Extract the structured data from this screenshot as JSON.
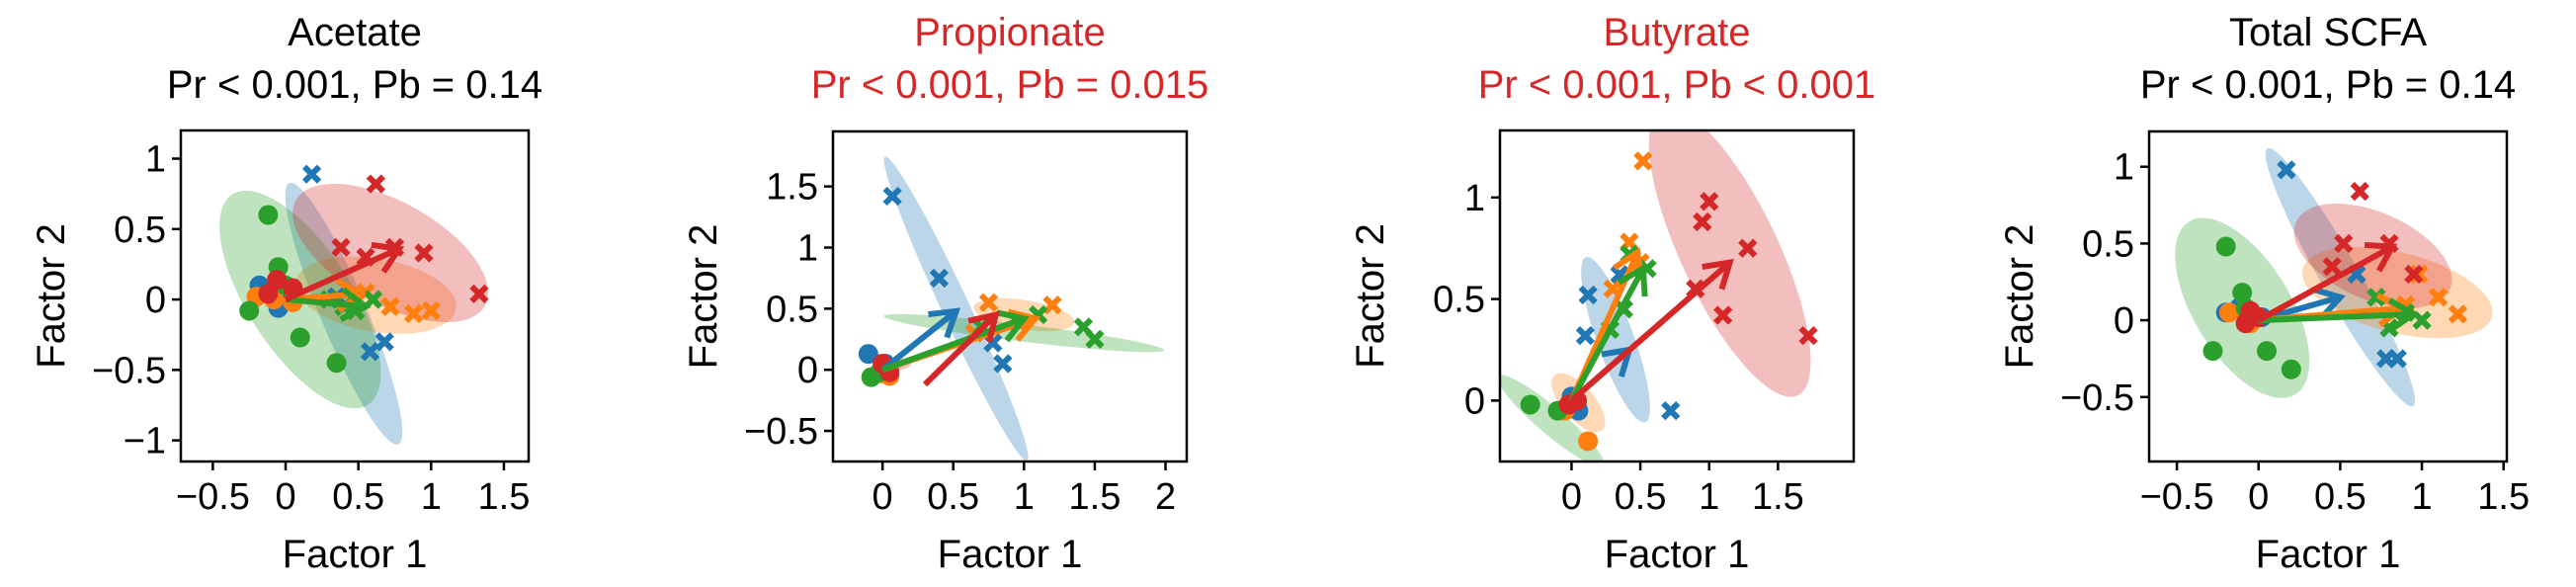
{
  "colors": {
    "blue": "#1f77b4",
    "orange": "#ff7f0e",
    "green": "#2ca02c",
    "red": "#d62728",
    "title_red": "#d62728",
    "title_black": "#000000"
  },
  "chart_data": [
    {
      "type": "scatter",
      "title": "Acetate",
      "subtitle": "Pr < 0.001, Pb = 0.14",
      "title_color": "#000000",
      "xlabel": "Factor 1",
      "ylabel": "Factor 2",
      "xlim": [
        -0.72,
        1.67
      ],
      "ylim": [
        -1.15,
        1.2
      ],
      "xticks": [
        -0.5,
        0,
        0.5,
        1,
        1.5
      ],
      "xticklabels": [
        "−0.5",
        "0",
        "0.5",
        "1",
        "1.5"
      ],
      "yticks": [
        -1,
        -0.5,
        0,
        0.5,
        1
      ],
      "yticklabels": [
        "−1",
        "−0.5",
        "0",
        "0.5",
        "1"
      ],
      "groups": [
        {
          "color": "#1f77b4",
          "ellipse": {
            "cx": 0.4,
            "cy": -0.1,
            "rx": 1.0,
            "ry": 0.16,
            "angle": -68
          },
          "arrow": [
            0.0,
            0.0,
            0.52,
            0.04
          ],
          "circles": [
            [
              -0.18,
              0.1
            ],
            [
              -0.1,
              0.06
            ],
            [
              0.02,
              0.02
            ],
            [
              -0.05,
              -0.06
            ]
          ],
          "crosses": [
            [
              0.18,
              0.89
            ],
            [
              0.58,
              -0.37
            ],
            [
              0.68,
              -0.3
            ],
            [
              0.35,
              0.02
            ]
          ]
        },
        {
          "color": "#ff7f0e",
          "ellipse": {
            "cx": 0.62,
            "cy": 0.03,
            "rx": 0.56,
            "ry": 0.26,
            "angle": -10
          },
          "arrow": [
            0.0,
            0.0,
            0.52,
            0.04
          ],
          "circles": [
            [
              -0.2,
              0.02
            ],
            [
              -0.08,
              0.0
            ],
            [
              0.05,
              -0.02
            ]
          ],
          "crosses": [
            [
              0.72,
              -0.05
            ],
            [
              0.88,
              -0.1
            ],
            [
              1.0,
              -0.08
            ],
            [
              0.55,
              0.05
            ]
          ]
        },
        {
          "color": "#2ca02c",
          "ellipse": {
            "cx": 0.1,
            "cy": 0.0,
            "rx": 0.88,
            "ry": 0.36,
            "angle": -58
          },
          "arrow": [
            0.0,
            0.0,
            0.55,
            -0.05
          ],
          "circles": [
            [
              -0.12,
              0.6
            ],
            [
              -0.05,
              0.23
            ],
            [
              -0.25,
              -0.08
            ],
            [
              0.1,
              -0.27
            ],
            [
              0.35,
              -0.45
            ],
            [
              0.0,
              0.1
            ]
          ],
          "crosses": [
            [
              0.4,
              -0.05
            ],
            [
              0.48,
              -0.08
            ],
            [
              0.6,
              0.0
            ],
            [
              0.3,
              0.0
            ]
          ]
        },
        {
          "color": "#d62728",
          "ellipse": {
            "cx": 0.72,
            "cy": 0.33,
            "rx": 0.75,
            "ry": 0.36,
            "angle": -30
          },
          "arrow": [
            0.0,
            0.0,
            0.78,
            0.36
          ],
          "circles": [
            [
              -0.06,
              0.14
            ],
            [
              0.05,
              0.08
            ],
            [
              -0.12,
              0.04
            ]
          ],
          "crosses": [
            [
              0.62,
              0.82
            ],
            [
              0.38,
              0.37
            ],
            [
              0.75,
              0.37
            ],
            [
              0.95,
              0.33
            ],
            [
              1.33,
              0.04
            ],
            [
              0.55,
              0.3
            ]
          ]
        }
      ]
    },
    {
      "type": "scatter",
      "title": "Propionate",
      "subtitle": "Pr < 0.001, Pb = 0.015",
      "title_color": "#d62728",
      "xlabel": "Factor 1",
      "ylabel": "Factor 2",
      "xlim": [
        -0.35,
        2.15
      ],
      "ylim": [
        -0.75,
        1.95
      ],
      "xticks": [
        0,
        0.5,
        1,
        1.5,
        2
      ],
      "xticklabels": [
        "0",
        "0.5",
        "1",
        "1.5",
        "2"
      ],
      "yticks": [
        -0.5,
        0,
        0.5,
        1,
        1.5
      ],
      "yticklabels": [
        "−0.5",
        "0",
        "0.5",
        "1",
        "1.5"
      ],
      "groups": [
        {
          "color": "#1f77b4",
          "ellipse": {
            "cx": 0.52,
            "cy": 0.5,
            "rx": 1.34,
            "ry": 0.1,
            "angle": -68
          },
          "arrow": [
            0.0,
            0.0,
            0.52,
            0.48
          ],
          "circles": [
            [
              -0.1,
              0.13
            ],
            [
              0.02,
              0.05
            ]
          ],
          "crosses": [
            [
              0.07,
              1.42
            ],
            [
              0.4,
              0.75
            ],
            [
              0.78,
              0.22
            ],
            [
              0.85,
              0.05
            ]
          ]
        },
        {
          "color": "#ff7f0e",
          "ellipse": {
            "cx": 1.0,
            "cy": 0.45,
            "rx": 0.36,
            "ry": 0.12,
            "angle": -10
          },
          "arrow": [
            0.0,
            0.0,
            1.08,
            0.42
          ],
          "circles": [
            [
              0.0,
              -0.03
            ],
            [
              0.05,
              -0.05
            ]
          ],
          "crosses": [
            [
              0.75,
              0.55
            ],
            [
              1.2,
              0.53
            ],
            [
              0.95,
              0.4
            ],
            [
              0.65,
              0.3
            ]
          ]
        },
        {
          "color": "#2ca02c",
          "ellipse": {
            "cx": 1.0,
            "cy": 0.3,
            "rx": 1.0,
            "ry": 0.07,
            "angle": -8
          },
          "arrow": [
            0.0,
            0.0,
            1.0,
            0.42
          ],
          "circles": [
            [
              -0.08,
              -0.06
            ],
            [
              -0.02,
              -0.02
            ]
          ],
          "crosses": [
            [
              1.42,
              0.35
            ],
            [
              1.5,
              0.25
            ],
            [
              1.1,
              0.45
            ],
            [
              0.7,
              0.35
            ]
          ]
        },
        {
          "color": "#d62728",
          "ellipse": {
            "cx": 0.1,
            "cy": 0.05,
            "rx": 0.1,
            "ry": 0.05,
            "angle": 0
          },
          "arrow": [
            0.3,
            -0.12,
            0.8,
            0.45
          ],
          "circles": [
            [
              0.0,
              0.05
            ],
            [
              0.05,
              -0.02
            ]
          ],
          "crosses": []
        }
      ]
    },
    {
      "type": "scatter",
      "title": "Butyrate",
      "subtitle": "Pr < 0.001, Pb < 0.001",
      "title_color": "#d62728",
      "xlabel": "Factor 1",
      "ylabel": "Factor 2",
      "xlim": [
        -0.52,
        2.05
      ],
      "ylim": [
        -0.3,
        1.33
      ],
      "xticks": [
        0,
        0.5,
        1,
        1.5
      ],
      "xticklabels": [
        "0",
        "0.5",
        "1",
        "1.5"
      ],
      "yticks": [
        0,
        0.5,
        1
      ],
      "yticklabels": [
        "0",
        "0.5",
        "1"
      ],
      "groups": [
        {
          "color": "#1f77b4",
          "ellipse": {
            "cx": 0.32,
            "cy": 0.3,
            "rx": 0.46,
            "ry": 0.12,
            "angle": -62
          },
          "arrow": [
            0.0,
            0.0,
            0.42,
            0.25
          ],
          "circles": [
            [
              0.05,
              -0.05
            ],
            [
              0.0,
              0.02
            ]
          ],
          "crosses": [
            [
              0.12,
              0.52
            ],
            [
              0.1,
              0.32
            ],
            [
              0.35,
              0.62
            ],
            [
              0.72,
              -0.05
            ]
          ]
        },
        {
          "color": "#ff7f0e",
          "ellipse": {
            "cx": 0.05,
            "cy": -0.01,
            "rx": 0.22,
            "ry": 0.09,
            "angle": -38
          },
          "arrow": [
            0.0,
            0.0,
            0.48,
            0.73
          ],
          "circles": [
            [
              0.12,
              -0.2
            ],
            [
              -0.05,
              -0.05
            ]
          ],
          "crosses": [
            [
              0.52,
              1.18
            ],
            [
              0.42,
              0.78
            ],
            [
              0.5,
              0.68
            ],
            [
              0.3,
              0.55
            ]
          ]
        },
        {
          "color": "#2ca02c",
          "ellipse": {
            "cx": -0.15,
            "cy": -0.1,
            "rx": 0.44,
            "ry": 0.07,
            "angle": -30
          },
          "arrow": [
            0.0,
            0.0,
            0.52,
            0.65
          ],
          "circles": [
            [
              -0.3,
              -0.02
            ],
            [
              -0.1,
              -0.05
            ]
          ],
          "crosses": [
            [
              0.42,
              0.72
            ],
            [
              0.55,
              0.65
            ],
            [
              0.38,
              0.45
            ],
            [
              0.28,
              0.35
            ]
          ]
        },
        {
          "color": "#d62728",
          "ellipse": {
            "cx": 1.15,
            "cy": 0.73,
            "rx": 0.86,
            "ry": 0.3,
            "angle": -55
          },
          "arrow": [
            0.0,
            0.0,
            1.15,
            0.68
          ],
          "circles": [
            [
              -0.02,
              -0.02
            ],
            [
              0.04,
              0.0
            ]
          ],
          "crosses": [
            [
              1.28,
              0.75
            ],
            [
              1.72,
              0.32
            ],
            [
              1.1,
              0.42
            ],
            [
              0.95,
              0.88
            ],
            [
              1.0,
              0.98
            ],
            [
              0.9,
              0.55
            ]
          ]
        }
      ]
    },
    {
      "type": "scatter",
      "title": "Total SCFA",
      "subtitle": "Pr < 0.001, Pb = 0.14",
      "title_color": "#000000",
      "xlabel": "Factor 1",
      "ylabel": "Factor 2",
      "xlim": [
        -0.67,
        1.52
      ],
      "ylim": [
        -0.92,
        1.23
      ],
      "xticks": [
        -0.5,
        0,
        0.5,
        1,
        1.5
      ],
      "xticklabels": [
        "−0.5",
        "0",
        "0.5",
        "1",
        "1.5"
      ],
      "yticks": [
        -0.5,
        0,
        0.5,
        1
      ],
      "yticklabels": [
        "−0.5",
        "0",
        "0.5",
        "1"
      ],
      "groups": [
        {
          "color": "#1f77b4",
          "ellipse": {
            "cx": 0.5,
            "cy": 0.28,
            "rx": 0.95,
            "ry": 0.12,
            "angle": -62
          },
          "arrow": [
            0.0,
            0.0,
            0.5,
            0.15
          ],
          "circles": [
            [
              -0.12,
              0.08
            ],
            [
              0.02,
              0.02
            ],
            [
              -0.2,
              0.05
            ]
          ],
          "crosses": [
            [
              0.17,
              0.98
            ],
            [
              0.78,
              -0.25
            ],
            [
              0.85,
              -0.25
            ],
            [
              0.6,
              0.3
            ]
          ]
        },
        {
          "color": "#ff7f0e",
          "ellipse": {
            "cx": 0.85,
            "cy": 0.18,
            "rx": 0.6,
            "ry": 0.26,
            "angle": -15
          },
          "arrow": [
            0.0,
            0.0,
            0.88,
            0.08
          ],
          "circles": [
            [
              -0.18,
              0.05
            ],
            [
              -0.05,
              -0.02
            ]
          ],
          "crosses": [
            [
              0.98,
              0.3
            ],
            [
              1.1,
              0.15
            ],
            [
              1.22,
              0.04
            ],
            [
              0.9,
              0.1
            ]
          ]
        },
        {
          "color": "#2ca02c",
          "ellipse": {
            "cx": -0.1,
            "cy": 0.08,
            "rx": 0.65,
            "ry": 0.3,
            "angle": -60
          },
          "arrow": [
            0.0,
            0.0,
            0.95,
            0.04
          ],
          "circles": [
            [
              -0.2,
              0.48
            ],
            [
              -0.1,
              0.18
            ],
            [
              -0.28,
              -0.2
            ],
            [
              0.05,
              -0.2
            ],
            [
              0.2,
              -0.32
            ],
            [
              -0.08,
              0.08
            ]
          ],
          "crosses": [
            [
              0.72,
              0.15
            ],
            [
              0.9,
              0.05
            ],
            [
              1.0,
              0.0
            ],
            [
              0.8,
              -0.05
            ]
          ]
        },
        {
          "color": "#d62728",
          "ellipse": {
            "cx": 0.7,
            "cy": 0.42,
            "rx": 0.52,
            "ry": 0.28,
            "angle": -25
          },
          "arrow": [
            0.0,
            0.0,
            0.82,
            0.48
          ],
          "circles": [
            [
              0.0,
              0.02
            ],
            [
              -0.05,
              0.06
            ],
            [
              -0.08,
              -0.02
            ]
          ],
          "crosses": [
            [
              0.62,
              0.84
            ],
            [
              0.52,
              0.5
            ],
            [
              0.8,
              0.5
            ],
            [
              0.95,
              0.3
            ],
            [
              0.45,
              0.35
            ]
          ]
        }
      ]
    }
  ]
}
